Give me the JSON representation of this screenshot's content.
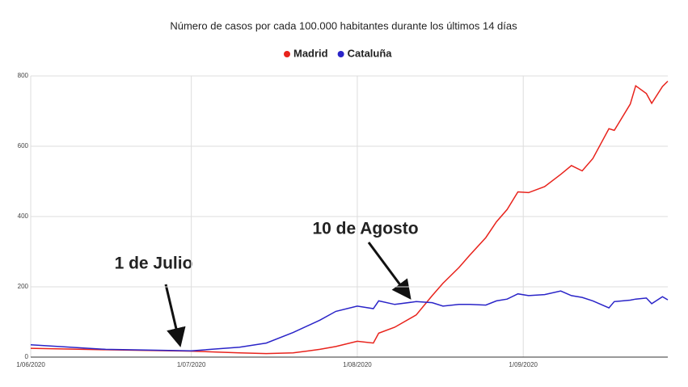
{
  "chart_data": {
    "type": "line",
    "title": "Número de casos por cada 100.000 habitantes durante los últimos 14 días",
    "x": [
      "2020-06-01",
      "2020-06-15",
      "2020-07-01",
      "2020-07-10",
      "2020-07-15",
      "2020-07-20",
      "2020-07-25",
      "2020-07-28",
      "2020-08-01",
      "2020-08-04",
      "2020-08-05",
      "2020-08-08",
      "2020-08-12",
      "2020-08-15",
      "2020-08-17",
      "2020-08-20",
      "2020-08-22",
      "2020-08-25",
      "2020-08-27",
      "2020-08-29",
      "2020-08-31",
      "2020-09-02",
      "2020-09-05",
      "2020-09-08",
      "2020-09-10",
      "2020-09-12",
      "2020-09-14",
      "2020-09-17",
      "2020-09-18",
      "2020-09-21",
      "2020-09-22",
      "2020-09-24",
      "2020-09-25",
      "2020-09-27",
      "2020-09-28"
    ],
    "series": [
      {
        "name": "Madrid",
        "color": "#e8231c",
        "values": [
          25,
          21,
          17,
          12,
          10,
          12,
          22,
          30,
          45,
          40,
          68,
          85,
          120,
          175,
          210,
          255,
          290,
          340,
          385,
          420,
          470,
          468,
          485,
          520,
          545,
          530,
          565,
          650,
          645,
          720,
          772,
          750,
          722,
          770,
          785
        ]
      },
      {
        "name": "Cataluña",
        "color": "#2a24c8",
        "values": [
          35,
          22,
          18,
          28,
          40,
          70,
          105,
          130,
          145,
          138,
          160,
          150,
          158,
          155,
          145,
          150,
          150,
          148,
          160,
          165,
          180,
          175,
          178,
          188,
          175,
          170,
          160,
          140,
          158,
          162,
          165,
          168,
          152,
          172,
          163
        ]
      }
    ],
    "xlim": [
      "2020-06-01",
      "2020-09-28"
    ],
    "xticks": [
      {
        "value": "2020-06-01",
        "label": "1/06/2020"
      },
      {
        "value": "2020-07-01",
        "label": "1/07/2020"
      },
      {
        "value": "2020-08-01",
        "label": "1/08/2020"
      },
      {
        "value": "2020-09-01",
        "label": "1/09/2020"
      }
    ],
    "ylim": [
      0,
      800
    ],
    "yticks": [
      0,
      200,
      400,
      600,
      800
    ],
    "grid": true,
    "annotations": [
      "1 de Julio",
      "10 de Agosto"
    ]
  }
}
